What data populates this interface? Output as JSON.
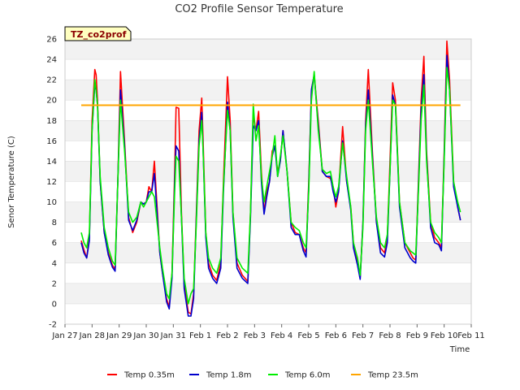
{
  "chart_data": {
    "type": "line",
    "title": "CO2 Profile Sensor Temperature",
    "xlabel": "Time",
    "ylabel": "Senor Temperature (C)",
    "site_label": "TZ_co2prof",
    "ylim": [
      -2,
      26
    ],
    "yticks": [
      -2,
      0,
      2,
      4,
      6,
      8,
      10,
      12,
      14,
      16,
      18,
      20,
      22,
      24,
      26
    ],
    "xlim": [
      0,
      15
    ],
    "xticks": [
      {
        "x": 0,
        "label": "Jan 27"
      },
      {
        "x": 1,
        "label": "Jan 28"
      },
      {
        "x": 2,
        "label": "Jan 29"
      },
      {
        "x": 3,
        "label": "Jan 30"
      },
      {
        "x": 4,
        "label": "Jan 31"
      },
      {
        "x": 5,
        "label": "Feb 1"
      },
      {
        "x": 6,
        "label": "Feb 2"
      },
      {
        "x": 7,
        "label": "Feb 3"
      },
      {
        "x": 8,
        "label": "Feb 4"
      },
      {
        "x": 9,
        "label": "Feb 5"
      },
      {
        "x": 10,
        "label": "Feb 6"
      },
      {
        "x": 11,
        "label": "Feb 7"
      },
      {
        "x": 12,
        "label": "Feb 8"
      },
      {
        "x": 13,
        "label": "Feb 9"
      },
      {
        "x": 14,
        "label": "Feb 10"
      },
      {
        "x": 15,
        "label": "Feb 11"
      }
    ],
    "grid": "horizontal bands",
    "legend_position": "bottom",
    "series": [
      {
        "name": "Temp 0.35m",
        "color": "#ff0000",
        "x": [
          0.6,
          0.7,
          0.8,
          0.9,
          1.0,
          1.1,
          1.15,
          1.2,
          1.3,
          1.45,
          1.6,
          1.75,
          1.85,
          1.95,
          2.05,
          2.2,
          2.35,
          2.5,
          2.65,
          2.8,
          2.9,
          3.0,
          3.1,
          3.2,
          3.3,
          3.5,
          3.6,
          3.75,
          3.85,
          3.95,
          4.05,
          4.1,
          4.2,
          4.3,
          4.4,
          4.55,
          4.65,
          4.75,
          4.85,
          4.95,
          5.05,
          5.1,
          5.2,
          5.3,
          5.45,
          5.6,
          5.75,
          5.85,
          6.0,
          6.1,
          6.2,
          6.35,
          6.55,
          6.75,
          6.85,
          6.95,
          7.05,
          7.15,
          7.25,
          7.35,
          7.45,
          7.55,
          7.65,
          7.75,
          7.85,
          7.95,
          8.05,
          8.2,
          8.35,
          8.5,
          8.65,
          8.8,
          8.9,
          9.0,
          9.1,
          9.2,
          9.35,
          9.5,
          9.65,
          9.8,
          9.9,
          10.0,
          10.1,
          10.25,
          10.4,
          10.55,
          10.65,
          10.8,
          10.9,
          11.0,
          11.1,
          11.2,
          11.35,
          11.5,
          11.65,
          11.8,
          11.9,
          12.0,
          12.1,
          12.2,
          12.35,
          12.55,
          12.75,
          12.85,
          12.95,
          13.05,
          13.15,
          13.25,
          13.35,
          13.5,
          13.65,
          13.8,
          13.9,
          14.0,
          14.1,
          14.2,
          14.35,
          14.5,
          14.6
        ],
        "y": [
          6.2,
          5.3,
          4.5,
          6.5,
          18.0,
          23.0,
          22.5,
          20.0,
          12.0,
          7.0,
          5.0,
          3.8,
          3.4,
          12.0,
          22.8,
          16.0,
          8.5,
          7.0,
          8.0,
          10.0,
          9.8,
          10.0,
          11.5,
          11.0,
          14.0,
          5.0,
          3.0,
          0.5,
          -0.3,
          3.0,
          13.0,
          19.3,
          19.2,
          9.0,
          2.0,
          -0.8,
          -1.0,
          1.0,
          9.0,
          17.0,
          20.2,
          16.0,
          7.0,
          4.0,
          2.8,
          2.3,
          4.0,
          12.0,
          22.3,
          18.0,
          9.0,
          4.0,
          2.8,
          2.2,
          9.0,
          18.5,
          17.0,
          18.9,
          13.0,
          9.0,
          11.0,
          12.0,
          15.0,
          15.5,
          13.0,
          14.0,
          17.0,
          13.0,
          8.0,
          7.0,
          6.8,
          5.5,
          5.0,
          12.0,
          21.0,
          22.5,
          18.0,
          13.0,
          12.5,
          12.3,
          11.5,
          9.5,
          11.0,
          17.4,
          12.0,
          9.5,
          6.0,
          4.0,
          2.6,
          8.0,
          18.0,
          23.0,
          15.0,
          8.0,
          5.5,
          5.0,
          6.5,
          14.0,
          21.7,
          20.0,
          10.0,
          6.0,
          5.0,
          4.5,
          4.3,
          12.0,
          20.0,
          24.3,
          15.0,
          8.0,
          6.5,
          6.0,
          5.5,
          15.0,
          25.8,
          22.0,
          12.0,
          9.5,
          8.2
        ]
      },
      {
        "name": "Temp 1.8m",
        "color": "#0000cc",
        "x": [
          0.6,
          0.7,
          0.8,
          0.9,
          1.0,
          1.1,
          1.15,
          1.2,
          1.3,
          1.45,
          1.6,
          1.75,
          1.85,
          1.95,
          2.05,
          2.2,
          2.35,
          2.5,
          2.65,
          2.8,
          2.9,
          3.0,
          3.1,
          3.2,
          3.3,
          3.5,
          3.6,
          3.75,
          3.85,
          3.95,
          4.05,
          4.1,
          4.2,
          4.3,
          4.4,
          4.55,
          4.65,
          4.75,
          4.85,
          4.95,
          5.05,
          5.1,
          5.2,
          5.3,
          5.45,
          5.6,
          5.75,
          5.85,
          6.0,
          6.1,
          6.2,
          6.35,
          6.55,
          6.75,
          6.85,
          6.95,
          7.05,
          7.15,
          7.25,
          7.35,
          7.45,
          7.55,
          7.65,
          7.75,
          7.85,
          7.95,
          8.05,
          8.2,
          8.35,
          8.5,
          8.65,
          8.8,
          8.9,
          9.0,
          9.1,
          9.2,
          9.35,
          9.5,
          9.65,
          9.8,
          9.9,
          10.0,
          10.1,
          10.25,
          10.4,
          10.55,
          10.65,
          10.8,
          10.9,
          11.0,
          11.1,
          11.2,
          11.35,
          11.5,
          11.65,
          11.8,
          11.9,
          12.0,
          12.1,
          12.2,
          12.35,
          12.55,
          12.75,
          12.85,
          12.95,
          13.05,
          13.15,
          13.25,
          13.35,
          13.5,
          13.65,
          13.8,
          13.9,
          14.0,
          14.1,
          14.2,
          14.35,
          14.5,
          14.6
        ],
        "y": [
          6.0,
          5.0,
          4.5,
          6.2,
          17.0,
          21.5,
          21.0,
          19.5,
          12.0,
          7.0,
          4.8,
          3.6,
          3.2,
          12.0,
          21.0,
          15.5,
          8.2,
          7.2,
          8.2,
          10.0,
          9.8,
          10.0,
          11.0,
          11.0,
          12.8,
          5.0,
          3.0,
          0.2,
          -0.5,
          2.5,
          12.0,
          15.5,
          15.0,
          8.5,
          1.5,
          -1.2,
          -1.2,
          0.5,
          8.5,
          16.0,
          18.8,
          15.0,
          6.5,
          3.5,
          2.5,
          2.0,
          3.5,
          11.0,
          19.8,
          17.0,
          8.5,
          3.5,
          2.5,
          2.0,
          8.5,
          17.5,
          17.0,
          18.0,
          12.0,
          8.8,
          10.5,
          12.0,
          14.5,
          15.5,
          12.5,
          14.0,
          17.0,
          13.0,
          7.5,
          6.8,
          6.8,
          5.2,
          4.6,
          11.5,
          21.0,
          22.5,
          17.5,
          13.0,
          12.5,
          12.5,
          11.0,
          10.0,
          11.0,
          16.0,
          12.0,
          9.2,
          5.5,
          3.8,
          2.4,
          8.0,
          17.5,
          21.0,
          14.5,
          8.0,
          5.0,
          4.6,
          6.0,
          13.0,
          20.5,
          19.5,
          9.5,
          5.5,
          4.5,
          4.2,
          4.0,
          11.5,
          19.0,
          22.5,
          14.5,
          7.5,
          6.0,
          5.8,
          5.2,
          14.5,
          24.4,
          21.0,
          11.5,
          9.5,
          8.2
        ]
      },
      {
        "name": "Temp 6.0m",
        "color": "#00ee00",
        "x": [
          0.6,
          0.7,
          0.8,
          0.9,
          1.0,
          1.1,
          1.15,
          1.2,
          1.3,
          1.45,
          1.6,
          1.75,
          1.85,
          1.95,
          2.05,
          2.2,
          2.35,
          2.5,
          2.65,
          2.8,
          2.9,
          3.0,
          3.1,
          3.2,
          3.3,
          3.5,
          3.6,
          3.75,
          3.85,
          3.95,
          4.05,
          4.1,
          4.2,
          4.3,
          4.4,
          4.55,
          4.65,
          4.75,
          4.85,
          4.95,
          5.05,
          5.1,
          5.2,
          5.3,
          5.45,
          5.6,
          5.75,
          5.85,
          6.0,
          6.1,
          6.2,
          6.35,
          6.55,
          6.75,
          6.85,
          6.95,
          7.05,
          7.15,
          7.25,
          7.35,
          7.45,
          7.55,
          7.65,
          7.75,
          7.85,
          7.95,
          8.05,
          8.2,
          8.35,
          8.5,
          8.65,
          8.8,
          8.9,
          9.0,
          9.1,
          9.2,
          9.35,
          9.5,
          9.65,
          9.8,
          9.9,
          10.0,
          10.1,
          10.25,
          10.4,
          10.55,
          10.65,
          10.8,
          10.9,
          11.0,
          11.1,
          11.2,
          11.35,
          11.5,
          11.65,
          11.8,
          11.9,
          12.0,
          12.1,
          12.2,
          12.35,
          12.55,
          12.75,
          12.85,
          12.95,
          13.05,
          13.15,
          13.25,
          13.35,
          13.5,
          13.65,
          13.8,
          13.9,
          14.0,
          14.1,
          14.2,
          14.35,
          14.5,
          14.6
        ],
        "y": [
          7.0,
          6.0,
          5.5,
          7.0,
          17.0,
          22.0,
          21.0,
          19.5,
          12.5,
          7.5,
          5.5,
          4.2,
          3.8,
          12.0,
          20.0,
          15.0,
          9.0,
          8.0,
          8.5,
          10.0,
          9.5,
          10.0,
          10.5,
          11.0,
          10.5,
          5.5,
          3.5,
          1.0,
          0.5,
          3.0,
          11.0,
          14.5,
          14.0,
          8.5,
          2.5,
          0.0,
          1.0,
          1.5,
          8.0,
          15.5,
          18.0,
          15.0,
          7.0,
          4.5,
          3.5,
          3.0,
          4.5,
          11.5,
          19.0,
          17.0,
          9.0,
          4.5,
          3.5,
          3.0,
          9.0,
          19.6,
          16.0,
          17.5,
          12.5,
          10.0,
          11.5,
          13.0,
          14.5,
          16.5,
          12.5,
          14.5,
          16.5,
          13.0,
          8.0,
          7.5,
          7.2,
          6.0,
          5.5,
          11.0,
          20.0,
          22.8,
          17.0,
          13.2,
          12.8,
          13.0,
          11.5,
          10.5,
          11.5,
          15.8,
          12.5,
          9.5,
          6.0,
          4.5,
          2.8,
          7.5,
          17.0,
          20.0,
          14.0,
          8.5,
          6.0,
          5.5,
          6.8,
          13.0,
          20.0,
          19.5,
          10.0,
          6.0,
          5.2,
          5.0,
          4.8,
          11.0,
          18.0,
          21.5,
          14.0,
          8.0,
          7.0,
          6.5,
          6.0,
          14.0,
          23.2,
          21.0,
          12.0,
          10.0,
          9.0
        ]
      },
      {
        "name": "Temp 23.5m",
        "color": "#ffa500",
        "x": [
          0.6,
          14.6
        ],
        "y": [
          19.5,
          19.5
        ]
      }
    ]
  }
}
